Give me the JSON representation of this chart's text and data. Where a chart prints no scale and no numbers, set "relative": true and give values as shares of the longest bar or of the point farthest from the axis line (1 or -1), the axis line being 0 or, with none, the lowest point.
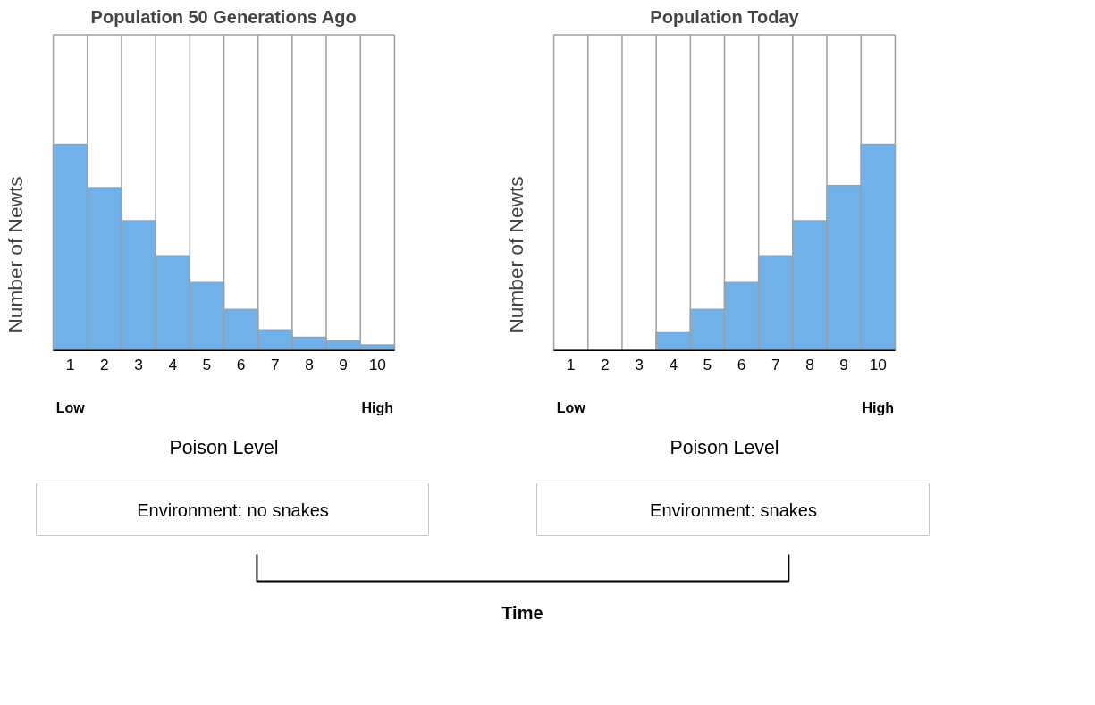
{
  "chart_data": [
    {
      "type": "bar",
      "title": "Population 50 Generations Ago",
      "ylabel": "Number of Newts",
      "xlabel": "Poison Level",
      "relative": true,
      "grid": "x",
      "color": "#6fb1e8",
      "categories": [
        "1",
        "2",
        "3",
        "4",
        "5",
        "6",
        "7",
        "8",
        "9",
        "10"
      ],
      "values": [
        1,
        0.79,
        0.63,
        0.46,
        0.33,
        0.2,
        0.1,
        0.064,
        0.046,
        0.028
      ],
      "annotations": [
        "Low",
        "High",
        "Environment: no snakes"
      ]
    },
    {
      "type": "bar",
      "title": "Population Today",
      "ylabel": "Number of Newts",
      "xlabel": "Poison Level",
      "relative": true,
      "grid": "x",
      "color": "#6fb1e8",
      "categories": [
        "1",
        "2",
        "3",
        "4",
        "5",
        "6",
        "7",
        "8",
        "9",
        "10"
      ],
      "values": [
        0,
        0,
        0,
        0.09,
        0.2,
        0.33,
        0.46,
        0.63,
        0.8,
        1
      ],
      "annotations": [
        "Low",
        "High",
        "Environment: snakes"
      ]
    },
    {
      "type": "other",
      "annotations": [
        "Time"
      ]
    }
  ]
}
